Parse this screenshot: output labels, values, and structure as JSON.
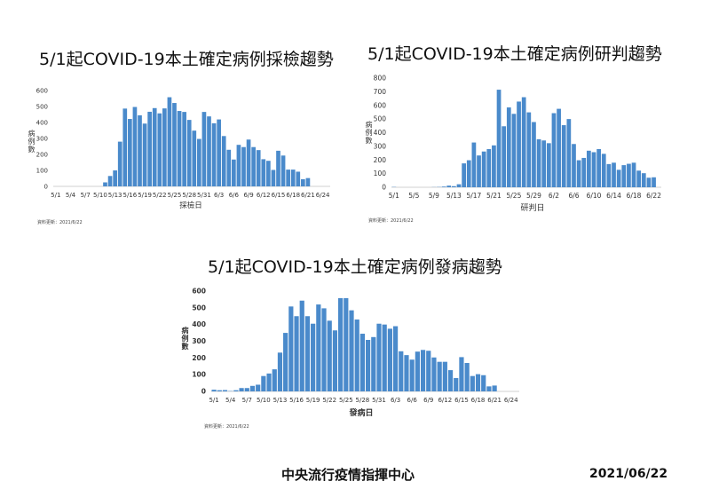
{
  "footer": {
    "organization": "中央流行疫情指揮中心",
    "date": "2021/06/22"
  },
  "chart_data": [
    {
      "type": "bar",
      "title": "5/1起COVID-19本土確定病例採檢趨勢",
      "xlabel": "採檢日",
      "ylabel": "病例數",
      "source_note": "資料更新：2021/6/22",
      "ylim": [
        0,
        600
      ],
      "yticks": [
        0,
        100,
        200,
        300,
        400,
        500,
        600
      ],
      "xticks": [
        "5/1",
        "5/4",
        "5/7",
        "5/10",
        "5/13",
        "5/16",
        "5/19",
        "5/22",
        "5/25",
        "5/28",
        "5/31",
        "6/3",
        "6/6",
        "6/9",
        "6/12",
        "6/15",
        "6/18",
        "6/21",
        "6/24"
      ],
      "x_range": [
        "5/1",
        "6/25"
      ],
      "bar_color": "#4a8acb",
      "start": "5/11",
      "values": [
        25,
        65,
        100,
        280,
        487,
        422,
        497,
        445,
        393,
        467,
        490,
        457,
        488,
        558,
        522,
        472,
        466,
        416,
        349,
        297,
        466,
        438,
        395,
        419,
        315,
        229,
        168,
        260,
        246,
        293,
        246,
        227,
        170,
        160,
        103,
        223,
        193,
        105,
        105,
        92,
        45,
        52
      ]
    },
    {
      "type": "bar",
      "title": "5/1起COVID-19本土確定病例研判趨勢",
      "xlabel": "研判日",
      "ylabel": "病例數",
      "source_note": "資料更新：2021/6/22",
      "ylim": [
        0,
        800
      ],
      "yticks": [
        0,
        100,
        200,
        300,
        400,
        500,
        600,
        700,
        800
      ],
      "xticks": [
        "5/1",
        "5/5",
        "5/9",
        "5/13",
        "5/17",
        "5/21",
        "5/25",
        "5/29",
        "6/2",
        "6/6",
        "6/10",
        "6/14",
        "6/18",
        "6/22"
      ],
      "x_range": [
        "5/1",
        "6/23"
      ],
      "bar_color": "#4a8acb",
      "start": "5/1",
      "values": [
        2,
        0,
        0,
        0,
        0,
        0,
        0,
        0,
        1,
        2,
        5,
        12,
        8,
        22,
        175,
        198,
        328,
        233,
        262,
        280,
        307,
        715,
        447,
        585,
        538,
        628,
        660,
        549,
        478,
        352,
        343,
        323,
        543,
        575,
        455,
        500,
        317,
        198,
        215,
        268,
        257,
        280,
        245,
        170,
        180,
        128,
        162,
        172,
        180,
        122,
        103,
        70,
        73
      ]
    },
    {
      "type": "bar",
      "title": "5/1起COVID-19本土確定病例發病趨勢",
      "xlabel": "發病日",
      "ylabel": "病例數",
      "source_note": "資料更新：2021/6/22",
      "ylim": [
        0,
        600
      ],
      "yticks": [
        0,
        100,
        200,
        300,
        400,
        500,
        600
      ],
      "xticks": [
        "5/1",
        "5/4",
        "5/7",
        "5/10",
        "5/13",
        "5/16",
        "5/19",
        "5/22",
        "5/25",
        "5/28",
        "5/31",
        "6/3",
        "6/6",
        "6/9",
        "6/12",
        "6/15",
        "6/18",
        "6/21",
        "6/24"
      ],
      "x_range": [
        "5/1",
        "6/25"
      ],
      "bar_color": "#4a8acb",
      "start": "5/1",
      "values": [
        10,
        7,
        8,
        2,
        7,
        20,
        20,
        33,
        40,
        92,
        107,
        132,
        232,
        350,
        508,
        450,
        543,
        450,
        405,
        520,
        497,
        423,
        365,
        558,
        558,
        485,
        430,
        345,
        308,
        325,
        405,
        400,
        375,
        390,
        240,
        217,
        190,
        238,
        248,
        243,
        203,
        177,
        177,
        127,
        80,
        205,
        170,
        92,
        103,
        97,
        30,
        35
      ]
    }
  ]
}
